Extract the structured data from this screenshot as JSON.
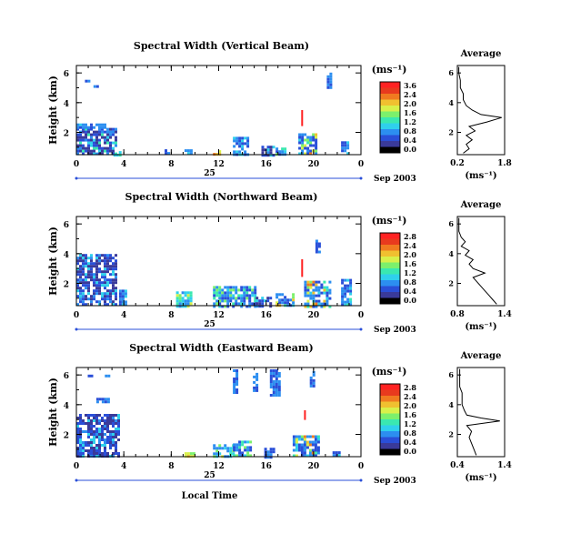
{
  "xlabel": "Local Time",
  "palette": [
    "#000000",
    "#3a3a9a",
    "#2a4fd8",
    "#2c8ef0",
    "#2fd0ec",
    "#3ae8b0",
    "#7cf06c",
    "#d8f04a",
    "#f0c030",
    "#f07a20",
    "#e83a1e",
    "#ff2222"
  ],
  "panels": [
    {
      "title": "Spectral Width (Vertical Beam)",
      "ylabel": "Height (km)",
      "unit": "(ms⁻¹)",
      "date_label": "Sep 2003",
      "date_num": "25",
      "y_ticks": [
        "2",
        "4",
        "6"
      ],
      "x_ticks": [
        "0",
        "4",
        "8",
        "12",
        "16",
        "20",
        "0"
      ],
      "colorbar_ticks": [
        "3.6",
        "2.4",
        "2.0",
        "1.6",
        "1.2",
        "0.8",
        "0.4",
        "0.0"
      ],
      "avg_title": "Average",
      "avg_xlabel": "(ms⁻¹)",
      "avg_x_ticks": [
        "0.2",
        "1.8"
      ],
      "avg_y_ticks": [
        "2",
        "4",
        "6"
      ]
    },
    {
      "title": "Spectral Width (Northward Beam)",
      "ylabel": "Height (km)",
      "unit": "(ms⁻¹)",
      "date_label": "Sep 2003",
      "date_num": "25",
      "y_ticks": [
        "2",
        "4",
        "6"
      ],
      "x_ticks": [
        "0",
        "4",
        "8",
        "12",
        "16",
        "20",
        "0"
      ],
      "colorbar_ticks": [
        "2.8",
        "2.4",
        "2.0",
        "1.6",
        "1.2",
        "0.8",
        "0.4",
        "0.0"
      ],
      "avg_title": "Average",
      "avg_xlabel": "(ms⁻¹)",
      "avg_x_ticks": [
        "0.8",
        "1.4"
      ],
      "avg_y_ticks": [
        "2",
        "4",
        "6"
      ]
    },
    {
      "title": "Spectral Width (Eastward Beam)",
      "ylabel": "Height (km)",
      "unit": "(ms⁻¹)",
      "date_label": "Sep 2003",
      "date_num": "25",
      "y_ticks": [
        "2",
        "4",
        "6"
      ],
      "x_ticks": [
        "0",
        "4",
        "8",
        "12",
        "16",
        "20",
        "0"
      ],
      "colorbar_ticks": [
        "2.8",
        "2.4",
        "2.0",
        "1.6",
        "1.2",
        "0.8",
        "0.4",
        "0.0"
      ],
      "avg_title": "Average",
      "avg_xlabel": "(ms⁻¹)",
      "avg_x_ticks": [
        "0.4",
        "1.4"
      ],
      "avg_y_ticks": [
        "2",
        "4",
        "6"
      ]
    }
  ],
  "chart_data": {
    "type": "heatmap",
    "x_range_hours": [
      0,
      24
    ],
    "y_range_km": [
      0.5,
      6.5
    ],
    "profiles": [
      {
        "x_range": [
          0.2,
          1.8
        ],
        "y_range": [
          0.5,
          6.5
        ],
        "points": [
          [
            0.4,
            0.6
          ],
          [
            0.6,
            0.9
          ],
          [
            0.5,
            1.2
          ],
          [
            0.7,
            1.5
          ],
          [
            0.5,
            1.8
          ],
          [
            0.8,
            2.1
          ],
          [
            0.6,
            2.4
          ],
          [
            1.2,
            2.7
          ],
          [
            1.7,
            3.0
          ],
          [
            1.0,
            3.2
          ],
          [
            0.7,
            3.5
          ],
          [
            0.5,
            3.8
          ],
          [
            0.4,
            4.2
          ],
          [
            0.4,
            4.6
          ],
          [
            0.3,
            5.0
          ],
          [
            0.3,
            5.5
          ],
          [
            0.25,
            6.0
          ],
          [
            0.25,
            6.4
          ]
        ]
      },
      {
        "x_range": [
          0.8,
          1.4
        ],
        "y_range": [
          0.5,
          6.5
        ],
        "points": [
          [
            1.3,
            0.6
          ],
          [
            1.25,
            0.9
          ],
          [
            1.2,
            1.2
          ],
          [
            1.15,
            1.5
          ],
          [
            1.1,
            1.8
          ],
          [
            1.05,
            2.1
          ],
          [
            1.0,
            2.4
          ],
          [
            1.15,
            2.7
          ],
          [
            1.0,
            3.0
          ],
          [
            0.95,
            3.3
          ],
          [
            1.0,
            3.6
          ],
          [
            0.9,
            3.9
          ],
          [
            0.95,
            4.2
          ],
          [
            0.85,
            4.5
          ],
          [
            0.9,
            4.8
          ],
          [
            0.85,
            5.1
          ],
          [
            0.82,
            5.5
          ],
          [
            0.82,
            6.0
          ],
          [
            0.82,
            6.4
          ]
        ]
      },
      {
        "x_range": [
          0.4,
          1.4
        ],
        "y_range": [
          0.5,
          6.5
        ],
        "points": [
          [
            0.8,
            0.6
          ],
          [
            0.75,
            1.0
          ],
          [
            0.7,
            1.4
          ],
          [
            0.65,
            1.8
          ],
          [
            0.7,
            2.2
          ],
          [
            0.6,
            2.6
          ],
          [
            1.3,
            2.9
          ],
          [
            0.9,
            3.1
          ],
          [
            0.6,
            3.3
          ],
          [
            0.55,
            3.6
          ],
          [
            0.5,
            4.0
          ],
          [
            0.5,
            4.4
          ],
          [
            0.5,
            4.8
          ],
          [
            0.45,
            5.2
          ],
          [
            0.45,
            5.6
          ],
          [
            0.45,
            6.0
          ],
          [
            0.45,
            6.4
          ]
        ]
      }
    ]
  }
}
